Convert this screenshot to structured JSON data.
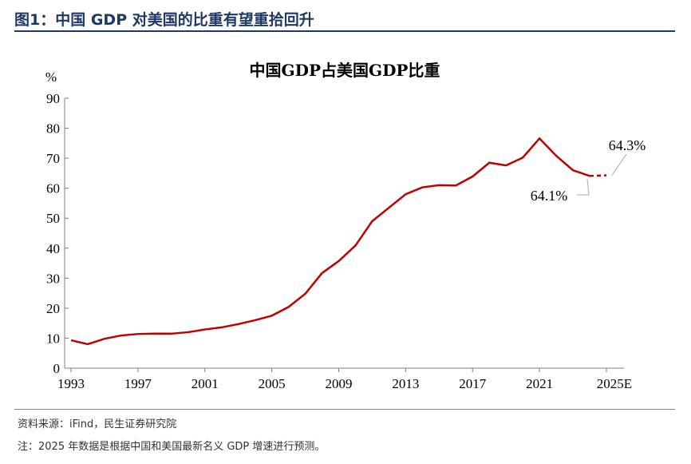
{
  "figure_title": "图1：中国 GDP 对美国的比重有望重拾回升",
  "source": "资料来源：iFind，民生证券研究院",
  "note": "注：2025 年数据是根据中国和美国最新名义 GDP 增速进行预测。",
  "colors": {
    "line": "#c00000",
    "axis": "#7f7f7f",
    "title": "#1f3864",
    "leader": "#a6a6a6"
  },
  "chart_data": {
    "type": "line",
    "title": "中国GDP占美国GDP比重",
    "ylabel": "%",
    "ylim": [
      0,
      90
    ],
    "yticks": [
      0,
      10,
      20,
      30,
      40,
      50,
      60,
      70,
      80,
      90
    ],
    "xlim": [
      1993,
      2025
    ],
    "xtick_labels": [
      "1993",
      "1997",
      "2001",
      "2005",
      "2009",
      "2013",
      "2017",
      "2021",
      "2025E"
    ],
    "grid": false,
    "x": [
      1993,
      1994,
      1995,
      1996,
      1997,
      1998,
      1999,
      2000,
      2001,
      2002,
      2003,
      2004,
      2005,
      2006,
      2007,
      2008,
      2009,
      2010,
      2011,
      2012,
      2013,
      2014,
      2015,
      2016,
      2017,
      2018,
      2019,
      2020,
      2021,
      2022,
      2023,
      2024
    ],
    "values": [
      9.3,
      8.0,
      9.8,
      10.9,
      11.4,
      11.5,
      11.5,
      12.0,
      12.9,
      13.6,
      14.7,
      16.0,
      17.5,
      20.4,
      24.8,
      31.7,
      35.7,
      40.9,
      49.0,
      53.5,
      58.0,
      60.3,
      61.0,
      60.9,
      63.9,
      68.5,
      67.6,
      70.2,
      76.6,
      70.8,
      66.0,
      64.1
    ],
    "forecast": {
      "x": 2025,
      "value": 64.3,
      "style": "dashed"
    },
    "annotations": [
      "64.1%",
      "64.3%"
    ]
  }
}
